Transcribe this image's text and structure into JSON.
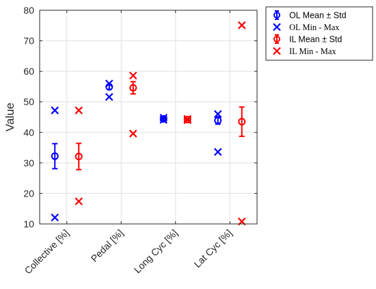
{
  "chart_data": {
    "type": "scatter",
    "ylabel": "Value",
    "xlabel": "",
    "title": "",
    "ylim": [
      10,
      80
    ],
    "yticks": [
      10,
      20,
      30,
      40,
      50,
      60,
      70,
      80
    ],
    "categories": [
      "Collective [%]",
      "Pedal [%]",
      "Long Cyc [%]",
      "Lat Cyc [%]"
    ],
    "grid": true,
    "legend_placement": "outside-top-right",
    "series": [
      {
        "name": "OL Mean ± Std",
        "color": "#0000ff",
        "marker": "circle-errorbar",
        "mean": [
          32.2,
          54.9,
          44.4,
          43.9
        ],
        "std": [
          4.1,
          0.8,
          0.4,
          1.2
        ]
      },
      {
        "name": "OL Min - Max",
        "color": "#0000ff",
        "marker": "x",
        "min": [
          12.1,
          51.6,
          44.1,
          33.6
        ],
        "max": [
          47.2,
          56.0,
          44.8,
          46.0
        ]
      },
      {
        "name": "IL Mean ± Std",
        "color": "#ff0000",
        "marker": "circle-errorbar",
        "mean": [
          32.1,
          54.6,
          44.2,
          43.5
        ],
        "std": [
          4.3,
          2.0,
          0.3,
          4.8
        ]
      },
      {
        "name": "IL Min - Max",
        "color": "#ff0000",
        "marker": "x",
        "min": [
          17.4,
          39.6,
          44.0,
          10.8
        ],
        "max": [
          47.2,
          58.6,
          44.4,
          75.1
        ]
      }
    ]
  }
}
